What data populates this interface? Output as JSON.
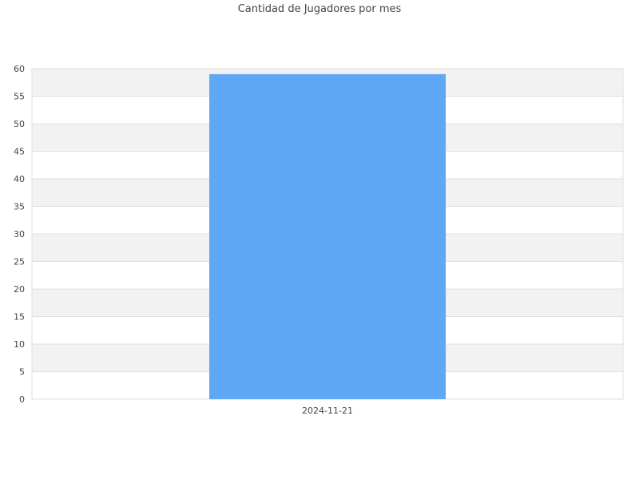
{
  "chart_data": {
    "type": "bar",
    "title": "Cantidad de Jugadores por mes",
    "xlabel": "",
    "ylabel": "",
    "categories": [
      "2024-11-21"
    ],
    "values": [
      59
    ],
    "ylim": [
      0,
      60
    ],
    "yticks": [
      0,
      5,
      10,
      15,
      20,
      25,
      30,
      35,
      40,
      45,
      50,
      55,
      60
    ],
    "grid": true,
    "legend": "none",
    "colors": {
      "bar": "#5fa8f5",
      "band_alt": "#f2f2f2",
      "band": "#ffffff",
      "grid": "#e0e0e0",
      "text": "#444444"
    }
  }
}
